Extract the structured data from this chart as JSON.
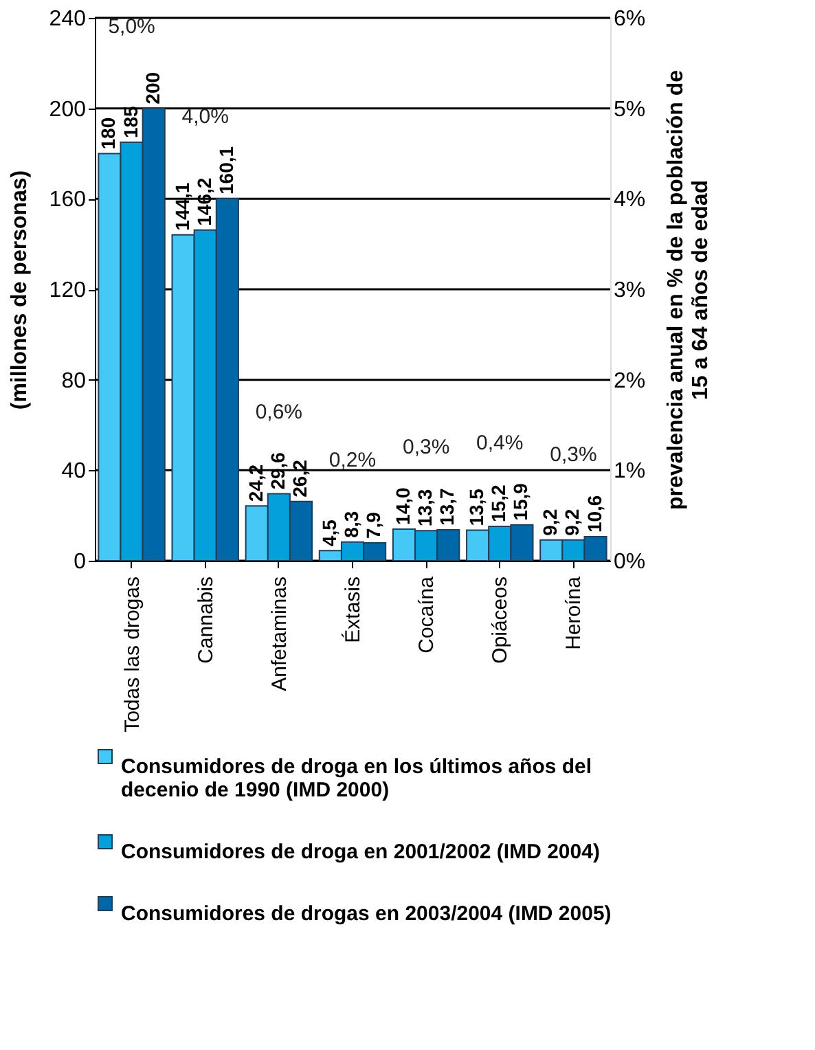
{
  "chart_data": {
    "type": "bar",
    "categories": [
      "Todas las drogas",
      "Cannabis",
      "Anfetaminas",
      "Éxtasis",
      "Cocaína",
      "Opiáceos",
      "Heroína"
    ],
    "series": [
      {
        "name": "Consumidores de droga en los últimos años del decenio de 1990 (IMD 2000)",
        "color": "#45c8f5",
        "values": [
          180,
          144.1,
          24.2,
          4.5,
          14.0,
          13.5,
          9.2
        ],
        "value_labels": [
          "180",
          "144,1",
          "24,2",
          "4,5",
          "14,0",
          "13,5",
          "9,2"
        ]
      },
      {
        "name": "Consumidores de droga en 2001/2002 (IMD 2004)",
        "color": "#04a0dc",
        "values": [
          185,
          146.2,
          29.6,
          8.3,
          13.3,
          15.2,
          9.2
        ],
        "value_labels": [
          "185",
          "146,2",
          "29,6",
          "8,3",
          "13,3",
          "15,2",
          "9,2"
        ]
      },
      {
        "name": "Consumidores de drogas en 2003/2004 (IMD 2005)",
        "color": "#0068a8",
        "values": [
          200,
          160.1,
          26.2,
          7.9,
          13.7,
          15.9,
          10.6
        ],
        "value_labels": [
          "200",
          "160,1",
          "26,2",
          "7,9",
          "13,7",
          "15,9",
          "10,6"
        ]
      }
    ],
    "ylabel": "(millones de personas)",
    "y2label": "prevalencia anual en % de la población de 15 a 64 años de edad",
    "ylim": [
      0,
      240
    ],
    "yticks": [
      0,
      40,
      80,
      120,
      160,
      200,
      240
    ],
    "y2lim": [
      0,
      6
    ],
    "y2ticks": [
      {
        "value": 0,
        "label": "0%"
      },
      {
        "value": 1,
        "label": "1%"
      },
      {
        "value": 2,
        "label": "2%"
      },
      {
        "value": 3,
        "label": "3%"
      },
      {
        "value": 4,
        "label": "4%"
      },
      {
        "value": 5,
        "label": "5%"
      },
      {
        "value": 6,
        "label": "6%"
      }
    ],
    "annotations": [
      "5,0%",
      "4,0%",
      "0,6%",
      "0,2%",
      "0,3%",
      "0,4%",
      "0,3%"
    ],
    "grid": "y",
    "legend": "bottom"
  }
}
